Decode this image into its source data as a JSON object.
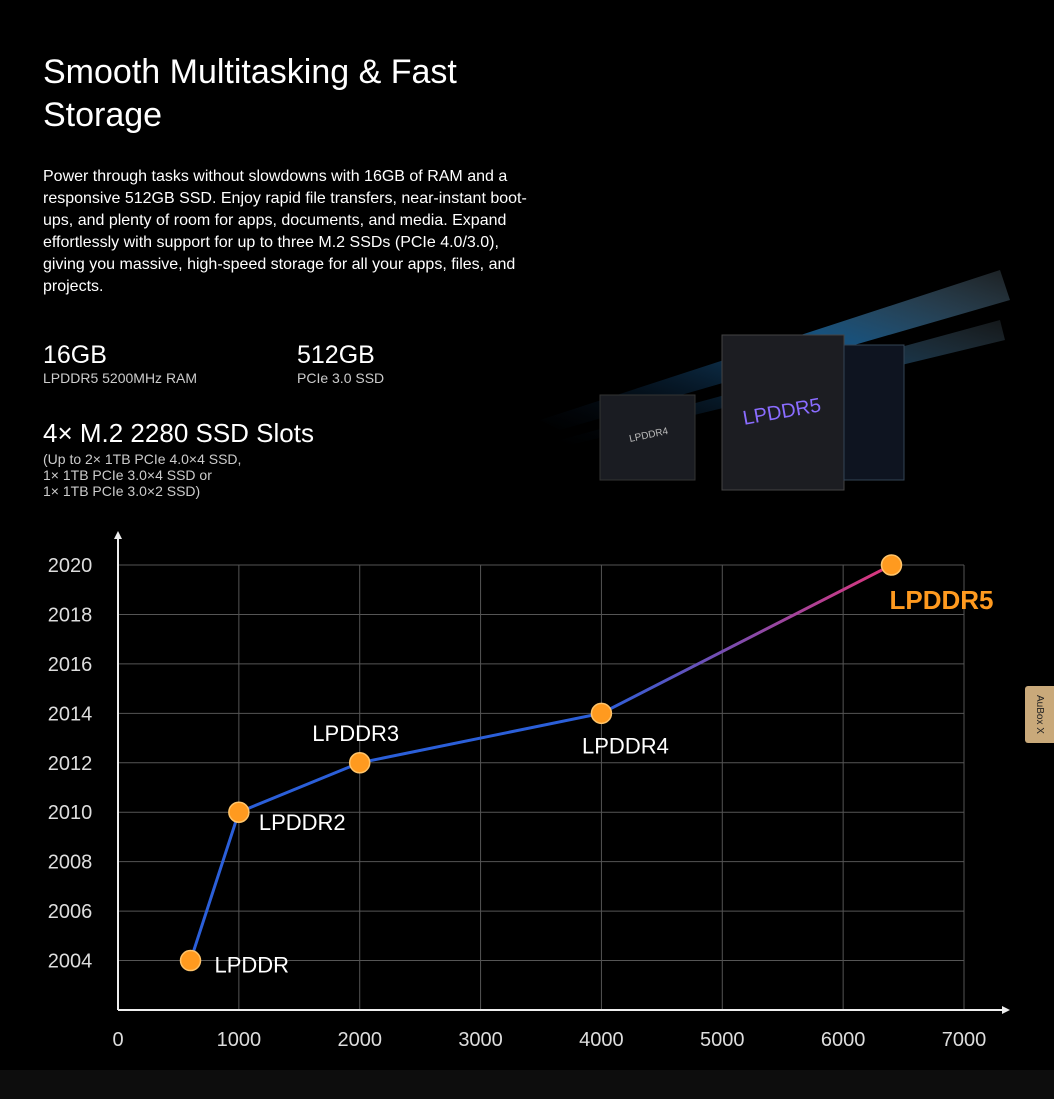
{
  "header": {
    "title": "Smooth Multitasking & Fast Storage",
    "body": "Power through tasks without slowdowns with 16GB of RAM and a responsive 512GB SSD. Enjoy rapid file transfers, near-instant boot-ups, and plenty of room for apps, documents, and media. Expand effortlessly with support for up to three M.2 SSDs (PCIe 4.0/3.0), giving you massive, high-speed storage for all your apps, files, and projects."
  },
  "specs": [
    {
      "value": "16GB",
      "label": "LPDDR5 5200MHz RAM"
    },
    {
      "value": "512GB",
      "label": "PCIe 3.0 SSD"
    }
  ],
  "slots": {
    "title": "4× M.2 2280 SSD Slots",
    "lines": [
      "(Up to 2× 1TB PCIe 4.0×4 SSD,",
      "1× 1TB PCIe 3.0×4 SSD or",
      "1× 1TB PCIe 3.0×2 SSD)"
    ]
  },
  "image": {
    "labels": [
      "LPDDR4",
      "LPDDR5"
    ]
  },
  "side_tab": "AuBox X",
  "chart_data": {
    "type": "line",
    "x": [
      600,
      1000,
      2000,
      4000,
      6400
    ],
    "series": [
      {
        "values": [
          2004,
          2010,
          2012,
          2014,
          2020
        ],
        "labels": [
          "LPDDR",
          "LPDDR2",
          "LPDDR3",
          "LPDDR4",
          "LPDDR5"
        ],
        "color": "#2b5fd9",
        "end_color": "#e0357a",
        "marker_color": "#ff9a1f"
      }
    ],
    "xlim": [
      0,
      7000
    ],
    "xticks": [
      0,
      1000,
      2000,
      3000,
      4000,
      5000,
      6000,
      7000
    ],
    "ylim": [
      2002,
      2020
    ],
    "yticks": [
      2004,
      2006,
      2008,
      2010,
      2012,
      2014,
      2016,
      2018,
      2020
    ],
    "grid": true
  }
}
